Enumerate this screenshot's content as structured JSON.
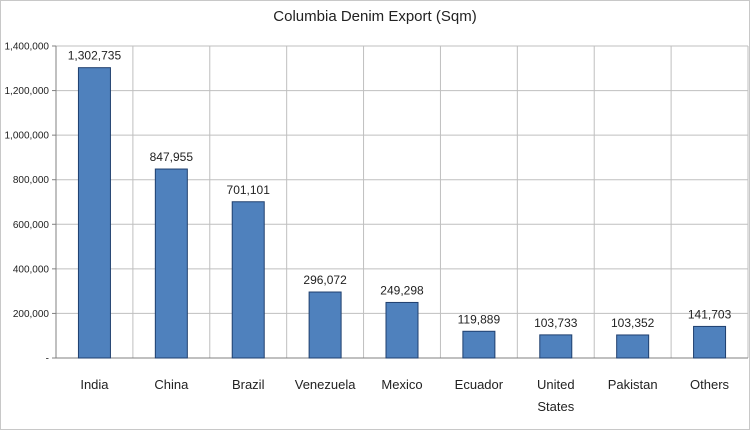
{
  "chart_data": {
    "type": "bar",
    "title": "Columbia Denim Export (Sqm)",
    "xlabel": "",
    "ylabel": "",
    "ylim": [
      0,
      1400000
    ],
    "yticks": [
      0,
      200000,
      400000,
      600000,
      800000,
      1000000,
      1200000,
      1400000
    ],
    "ytick_labels": [
      "-",
      "200,000",
      "400,000",
      "600,000",
      "800,000",
      "1,000,000",
      "1,200,000",
      "1,400,000"
    ],
    "categories": [
      "India",
      "China",
      "Brazil",
      "Venezuela",
      "Mexico",
      "Ecuador",
      "United States",
      "Pakistan",
      "Others"
    ],
    "category_lines": [
      [
        "India"
      ],
      [
        "China"
      ],
      [
        "Brazil"
      ],
      [
        "Venezuela"
      ],
      [
        "Mexico"
      ],
      [
        "Ecuador"
      ],
      [
        "United",
        "States"
      ],
      [
        "Pakistan"
      ],
      [
        "Others"
      ]
    ],
    "values": [
      1302735,
      847955,
      701101,
      296072,
      249298,
      119889,
      103733,
      103352,
      141703
    ],
    "value_labels": [
      "1,302,735",
      "847,955",
      "701,101",
      "296,072",
      "249,298",
      "119,889",
      "103,733",
      "103,352",
      "141,703"
    ],
    "grid": true,
    "legend": "none",
    "bar_color": "#4f81bd",
    "bar_edge_color": "#1f3f6e",
    "grid_color": "#bfbfbf"
  }
}
